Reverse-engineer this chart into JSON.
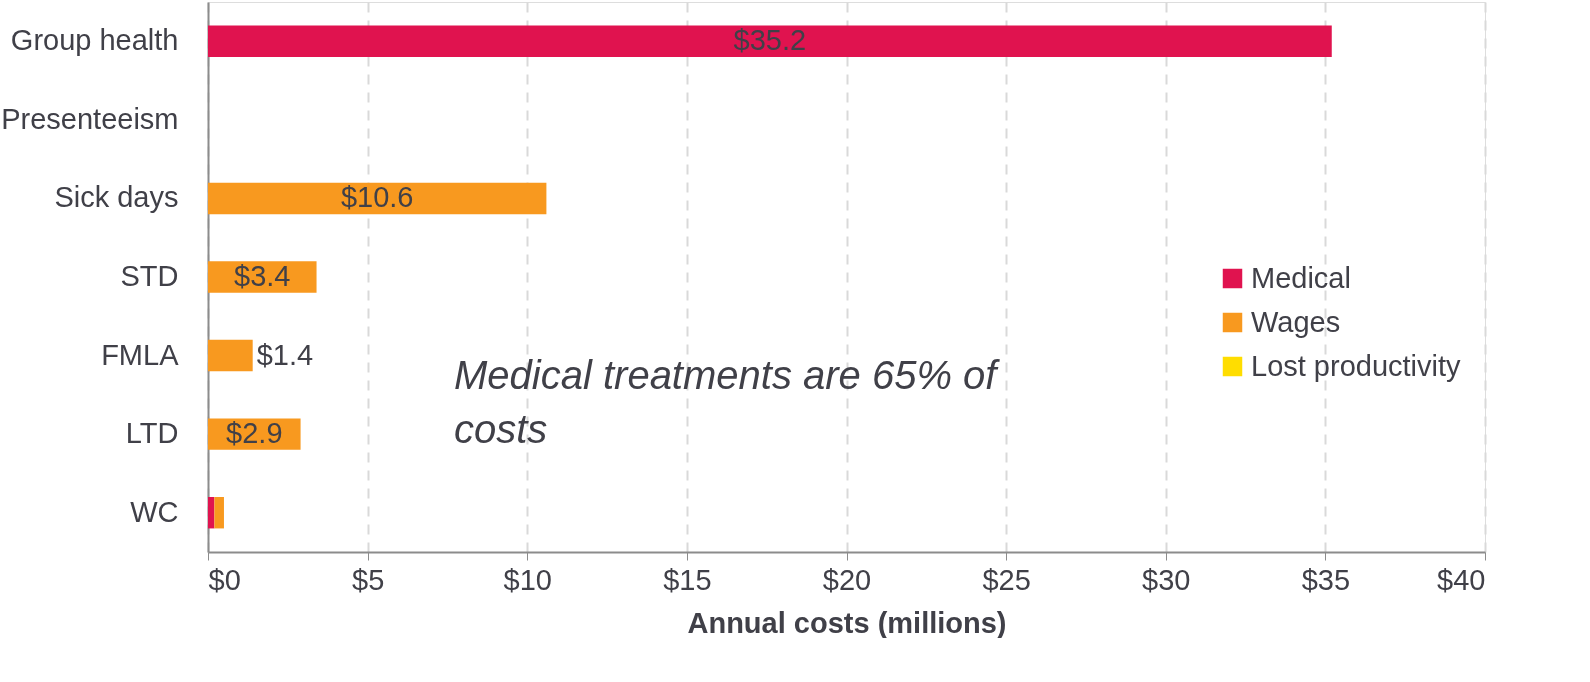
{
  "chart_data": {
    "type": "bar",
    "orientation": "horizontal",
    "stacked": true,
    "categories": [
      "Group health",
      "Presenteeism",
      "Sick days",
      "STD",
      "FMLA",
      "LTD",
      "WC"
    ],
    "series": [
      {
        "name": "Medical",
        "color": "#e0134f",
        "values": [
          35.2,
          null,
          null,
          null,
          null,
          null,
          0.2
        ],
        "value_labels": [
          "$35.2",
          null,
          null,
          null,
          null,
          null,
          null
        ]
      },
      {
        "name": "Wages",
        "color": "#f8991f",
        "values": [
          null,
          null,
          10.6,
          3.4,
          1.4,
          2.9,
          0.3
        ],
        "value_labels": [
          null,
          null,
          "$10.6",
          "$3.4",
          "$1.4",
          "$2.9",
          null
        ]
      },
      {
        "name": "Lost productivity",
        "color": "#ffdd00",
        "values": [
          null,
          null,
          null,
          null,
          null,
          null,
          null
        ]
      }
    ],
    "xlabel": "Annual costs (millions)",
    "xlim": [
      0,
      40
    ],
    "xticks": [
      {
        "value": 0,
        "label": "$0"
      },
      {
        "value": 5,
        "label": "$5"
      },
      {
        "value": 10,
        "label": "$10"
      },
      {
        "value": 15,
        "label": "$15"
      },
      {
        "value": 20,
        "label": "$20"
      },
      {
        "value": 25,
        "label": "$25"
      },
      {
        "value": 30,
        "label": "$30"
      },
      {
        "value": 35,
        "label": "$35"
      },
      {
        "value": 40,
        "label": "$40"
      }
    ],
    "grid": "x",
    "legend": "right",
    "annotations": [
      "Medical treatments are 65% of costs"
    ]
  }
}
